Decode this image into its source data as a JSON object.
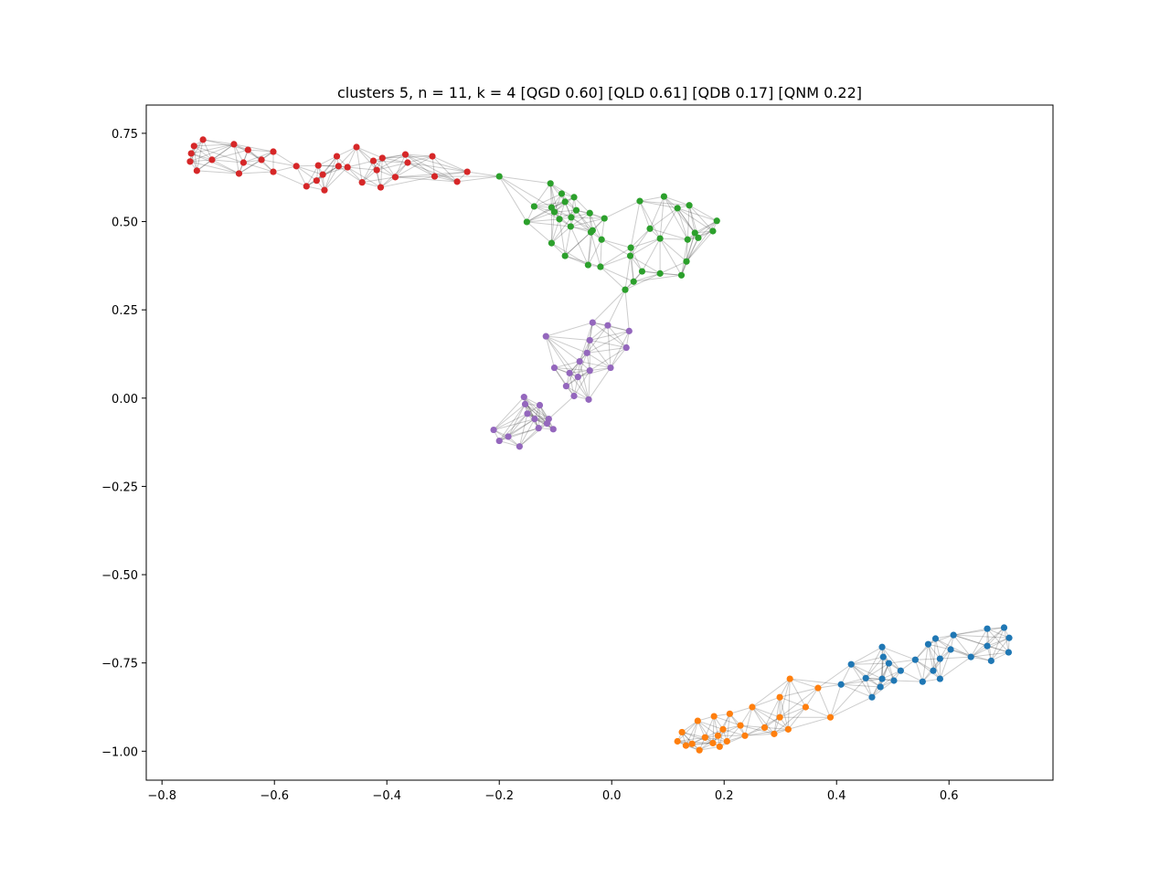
{
  "chart_data": {
    "type": "scatter",
    "title": "clusters 5, n = 11, k = 4 [QGD 0.60] [QLD 0.61] [QDB 0.17] [QNM 0.22]",
    "xlim": [
      -0.828,
      0.785
    ],
    "ylim": [
      -1.082,
      0.83
    ],
    "xticks": [
      {
        "value": -0.8,
        "label": "−0.8"
      },
      {
        "value": -0.6,
        "label": "−0.6"
      },
      {
        "value": -0.4,
        "label": "−0.4"
      },
      {
        "value": -0.2,
        "label": "−0.2"
      },
      {
        "value": 0,
        "label": "0.0"
      },
      0.2,
      0.4,
      0.6
    ],
    "yticks": [
      {
        "value": -1,
        "label": "−1.00"
      },
      {
        "value": -0.75,
        "label": "−0.75"
      },
      {
        "value": -0.5,
        "label": "−0.50"
      },
      {
        "value": -0.25,
        "label": "−0.25"
      },
      {
        "value": 0,
        "label": "0.00"
      },
      0.25,
      {
        "value": 0.5,
        "label": "0.50"
      },
      0.75
    ],
    "series": [
      {
        "color": "#1f77b4",
        "x": [
          0.481,
          0.576,
          0.608,
          0.668,
          0.698,
          0.707,
          0.706,
          0.668,
          0.639,
          0.603,
          0.563,
          0.584,
          0.54,
          0.483,
          0.493,
          0.514,
          0.426,
          0.675,
          0.572,
          0.553,
          0.584,
          0.502,
          0.481,
          0.452,
          0.478,
          0.408,
          0.463
        ],
        "values": [
          -0.705,
          -0.681,
          -0.671,
          -0.653,
          -0.65,
          -0.679,
          -0.72,
          -0.702,
          -0.733,
          -0.712,
          -0.697,
          -0.738,
          -0.741,
          -0.733,
          -0.751,
          -0.772,
          -0.754,
          -0.744,
          -0.772,
          -0.803,
          -0.795,
          -0.8,
          -0.795,
          -0.793,
          -0.818,
          -0.811,
          -0.847
        ]
      },
      {
        "color": "#ff7f0e",
        "x": [
          0.317,
          0.367,
          0.299,
          0.345,
          0.389,
          0.25,
          0.182,
          0.153,
          0.21,
          0.125,
          0.229,
          0.198,
          0.299,
          0.272,
          0.289,
          0.314,
          0.237,
          0.189,
          0.166,
          0.143,
          0.117,
          0.132,
          0.18,
          0.205,
          0.156,
          0.192
        ],
        "values": [
          -0.795,
          -0.821,
          -0.847,
          -0.875,
          -0.904,
          -0.875,
          -0.901,
          -0.914,
          -0.894,
          -0.946,
          -0.927,
          -0.938,
          -0.904,
          -0.933,
          -0.951,
          -0.938,
          -0.956,
          -0.956,
          -0.961,
          -0.979,
          -0.972,
          -0.984,
          -0.977,
          -0.972,
          -0.997,
          -0.987
        ]
      },
      {
        "color": "#2ca02c",
        "x": [
          -0.2,
          -0.109,
          -0.089,
          -0.067,
          -0.083,
          -0.107,
          -0.138,
          -0.151,
          -0.102,
          -0.093,
          -0.072,
          -0.063,
          -0.039,
          -0.013,
          -0.073,
          -0.034,
          -0.018,
          -0.037,
          -0.107,
          -0.083,
          -0.042,
          -0.02,
          0.034,
          0.033,
          0.054,
          0.068,
          0.086,
          0.05,
          0.093,
          0.117,
          0.138,
          0.148,
          0.135,
          0.154,
          0.18,
          0.187,
          0.133,
          0.124,
          0.086,
          0.039,
          0.024
        ],
        "values": [
          0.628,
          0.608,
          0.579,
          0.569,
          0.556,
          0.54,
          0.543,
          0.499,
          0.527,
          0.507,
          0.512,
          0.532,
          0.524,
          0.509,
          0.486,
          0.475,
          0.449,
          0.47,
          0.439,
          0.403,
          0.377,
          0.372,
          0.426,
          0.403,
          0.359,
          0.48,
          0.452,
          0.558,
          0.571,
          0.538,
          0.546,
          0.468,
          0.449,
          0.454,
          0.473,
          0.502,
          0.387,
          0.348,
          0.353,
          0.33,
          0.307
        ]
      },
      {
        "color": "#d62728",
        "x": [
          -0.727,
          -0.743,
          -0.748,
          -0.75,
          -0.738,
          -0.711,
          -0.672,
          -0.647,
          -0.623,
          -0.602,
          -0.655,
          -0.663,
          -0.602,
          -0.561,
          -0.543,
          -0.525,
          -0.522,
          -0.514,
          -0.511,
          -0.489,
          -0.486,
          -0.47,
          -0.454,
          -0.444,
          -0.424,
          -0.418,
          -0.408,
          -0.411,
          -0.385,
          -0.367,
          -0.363,
          -0.319,
          -0.315,
          -0.275,
          -0.257
        ],
        "values": [
          0.732,
          0.714,
          0.693,
          0.67,
          0.644,
          0.675,
          0.719,
          0.703,
          0.675,
          0.698,
          0.667,
          0.636,
          0.641,
          0.657,
          0.6,
          0.616,
          0.659,
          0.633,
          0.589,
          0.685,
          0.657,
          0.654,
          0.711,
          0.611,
          0.672,
          0.646,
          0.68,
          0.597,
          0.626,
          0.69,
          0.667,
          0.685,
          0.628,
          0.613,
          0.641
        ]
      },
      {
        "color": "#9467bd",
        "x": [
          -0.034,
          -0.007,
          0.031,
          -0.117,
          -0.039,
          0.026,
          -0.044,
          -0.102,
          -0.057,
          -0.075,
          -0.039,
          -0.002,
          -0.06,
          -0.081,
          -0.067,
          -0.041,
          -0.156,
          -0.154,
          -0.128,
          -0.15,
          -0.137,
          -0.112,
          -0.13,
          -0.104,
          -0.21,
          -0.184,
          -0.2,
          -0.164,
          -0.115
        ],
        "values": [
          0.214,
          0.206,
          0.19,
          0.175,
          0.164,
          0.143,
          0.128,
          0.086,
          0.104,
          0.071,
          0.078,
          0.086,
          0.06,
          0.034,
          0.006,
          -0.004,
          0.003,
          -0.017,
          -0.02,
          -0.044,
          -0.059,
          -0.059,
          -0.085,
          -0.088,
          -0.09,
          -0.109,
          -0.121,
          -0.137,
          -0.072
        ]
      }
    ]
  }
}
